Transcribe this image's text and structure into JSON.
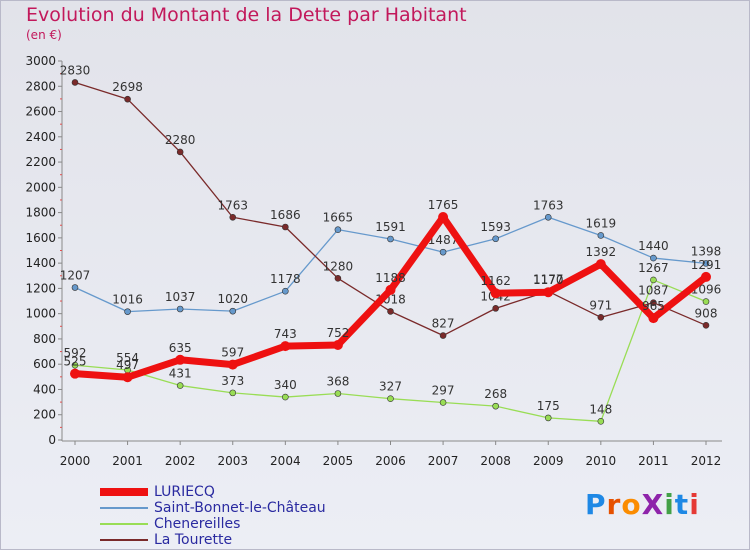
{
  "title": "Evolution du Montant de la Dette par Habitant",
  "subtitle": "(en €)",
  "logo": {
    "text": "ProXiti",
    "colors": [
      "#1e88e5",
      "#e65100",
      "#fb8c00",
      "#8e24aa",
      "#43a047",
      "#1e88e5",
      "#e53935"
    ]
  },
  "chart_data": {
    "type": "line",
    "title": "Evolution du Montant de la Dette par Habitant",
    "subtitle": "(en €)",
    "x": [
      "2000",
      "2001",
      "2002",
      "2003",
      "2004",
      "2005",
      "2006",
      "2007",
      "2008",
      "2009",
      "2010",
      "2011",
      "2012"
    ],
    "ylim": [
      0,
      3000
    ],
    "yticks": [
      0,
      200,
      400,
      600,
      800,
      1000,
      1200,
      1400,
      1600,
      1800,
      2000,
      2200,
      2400,
      2600,
      2800,
      3000
    ],
    "grid": false,
    "legend_position": "bottom-left",
    "series": [
      {
        "name": "LURIECQ",
        "color": "#ee1111",
        "width": 7,
        "values": [
          525,
          497,
          635,
          597,
          743,
          752,
          1188,
          1765,
          1162,
          1170,
          1392,
          965,
          1291
        ]
      },
      {
        "name": "Saint-Bonnet-le-Château",
        "color": "#6699cc",
        "width": 1.3,
        "values": [
          1207,
          1016,
          1037,
          1020,
          1178,
          1665,
          1591,
          1487,
          1593,
          1763,
          1619,
          1440,
          1398
        ]
      },
      {
        "name": "Chenereilles",
        "color": "#99dd55",
        "width": 1.3,
        "values": [
          592,
          554,
          431,
          373,
          340,
          368,
          327,
          297,
          268,
          175,
          148,
          1267,
          1096
        ]
      },
      {
        "name": "La Tourette",
        "color": "#7a2a2a",
        "width": 1.3,
        "values": [
          2830,
          2698,
          2280,
          1763,
          1686,
          1280,
          1018,
          827,
          1042,
          1177,
          971,
          1087,
          908
        ]
      }
    ]
  }
}
